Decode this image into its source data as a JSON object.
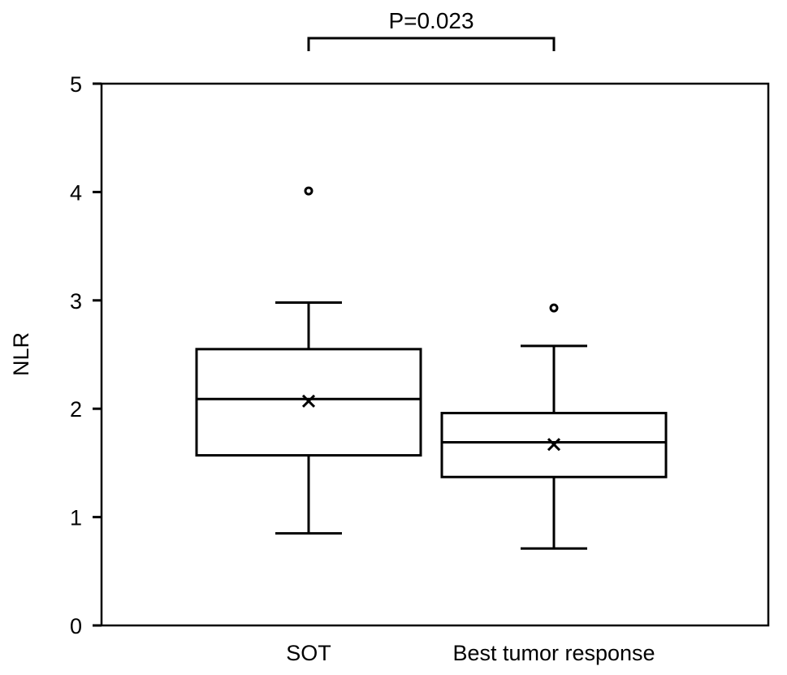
{
  "chart_data": {
    "type": "box",
    "ylabel": "NLR",
    "xlabel": "",
    "ylim": [
      0,
      5
    ],
    "yticks": [
      "0",
      "1",
      "2",
      "3",
      "4",
      "5"
    ],
    "categories": [
      "SOT",
      "Best tumor response"
    ],
    "boxes": [
      {
        "name": "SOT",
        "whisker_low": 0.85,
        "q1": 1.57,
        "median": 2.09,
        "q3": 2.55,
        "whisker_high": 2.98,
        "mean": 2.07,
        "outliers": [
          4.01
        ]
      },
      {
        "name": "Best tumor response",
        "whisker_low": 0.71,
        "q1": 1.37,
        "median": 1.69,
        "q3": 1.96,
        "whisker_high": 2.58,
        "mean": 1.67,
        "outliers": [
          2.93
        ]
      }
    ],
    "significance": {
      "between": [
        "SOT",
        "Best tumor response"
      ],
      "label": "P=0.023"
    },
    "colors": {
      "stroke": "#000000",
      "background": "#ffffff"
    }
  }
}
